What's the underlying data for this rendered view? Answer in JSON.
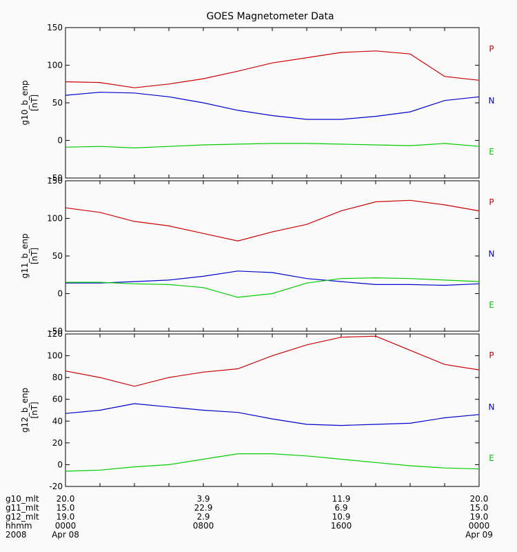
{
  "chart_data": {
    "type": "line",
    "title": "GOES Magnetometer Data",
    "x": [
      "0000",
      "0200",
      "0400",
      "0600",
      "0800",
      "1000",
      "1200",
      "1400",
      "1600",
      "1800",
      "2000",
      "2200",
      "0000"
    ],
    "panels": [
      {
        "ylabel": "g10_b_enp",
        "yunit": "[nT]",
        "ylim": [
          -50,
          150
        ],
        "yticks": [
          -50,
          0,
          50,
          100,
          150
        ],
        "series": [
          {
            "name": "P",
            "color": "#cc0000",
            "values": [
              78,
              77,
              70,
              75,
              82,
              92,
              103,
              110,
              117,
              119,
              115,
              85,
              80
            ]
          },
          {
            "name": "N",
            "color": "#0000cc",
            "values": [
              60,
              64,
              63,
              58,
              50,
              40,
              33,
              28,
              28,
              32,
              38,
              53,
              58
            ]
          },
          {
            "name": "E",
            "color": "#00cc00",
            "values": [
              -9,
              -8,
              -10,
              -8,
              -6,
              -5,
              -4,
              -4,
              -5,
              -6,
              -7,
              -4,
              -8
            ]
          }
        ]
      },
      {
        "ylabel": "g11_b_enp",
        "yunit": "[nT]",
        "ylim": [
          -50,
          150
        ],
        "yticks": [
          -50,
          0,
          50,
          100,
          150
        ],
        "series": [
          {
            "name": "P",
            "color": "#cc0000",
            "values": [
              114,
              108,
              96,
              90,
              80,
              70,
              82,
              92,
              110,
              122,
              124,
              118,
              110
            ]
          },
          {
            "name": "N",
            "color": "#0000cc",
            "values": [
              14,
              14,
              16,
              18,
              23,
              30,
              28,
              20,
              16,
              12,
              12,
              11,
              13
            ]
          },
          {
            "name": "E",
            "color": "#00cc00",
            "values": [
              15,
              15,
              13,
              12,
              8,
              -5,
              0,
              14,
              20,
              21,
              20,
              18,
              16
            ]
          }
        ]
      },
      {
        "ylabel": "g12_b_enp",
        "yunit": "[nT]",
        "ylim": [
          -20,
          120
        ],
        "yticks": [
          -20,
          0,
          20,
          40,
          60,
          80,
          100,
          120
        ],
        "series": [
          {
            "name": "P",
            "color": "#cc0000",
            "values": [
              86,
              80,
              72,
              80,
              85,
              88,
              100,
              110,
              117,
              118,
              105,
              92,
              87
            ]
          },
          {
            "name": "N",
            "color": "#0000cc",
            "values": [
              47,
              50,
              56,
              53,
              50,
              48,
              42,
              37,
              36,
              37,
              38,
              43,
              46
            ]
          },
          {
            "name": "E",
            "color": "#00cc00",
            "values": [
              -6,
              -5,
              -2,
              0,
              5,
              10,
              10,
              8,
              5,
              2,
              -1,
              -3,
              -4
            ]
          }
        ]
      }
    ],
    "legend_placement": "right",
    "x_axis_table": {
      "rows": [
        {
          "label": "g10_mlt",
          "values": [
            "20.0",
            "3.9",
            "11.9",
            "20.0"
          ]
        },
        {
          "label": "g11_mlt",
          "values": [
            "15.0",
            "22.9",
            "6.9",
            "15.0"
          ]
        },
        {
          "label": "g12_mlt",
          "values": [
            "19.0",
            "2.9",
            "10.9",
            "19.0"
          ]
        },
        {
          "label": "hhmm",
          "values": [
            "0000",
            "0800",
            "1600",
            "0000"
          ]
        },
        {
          "label": "2008",
          "values": [
            "Apr 08",
            "",
            "",
            "Apr 09"
          ]
        }
      ]
    }
  }
}
